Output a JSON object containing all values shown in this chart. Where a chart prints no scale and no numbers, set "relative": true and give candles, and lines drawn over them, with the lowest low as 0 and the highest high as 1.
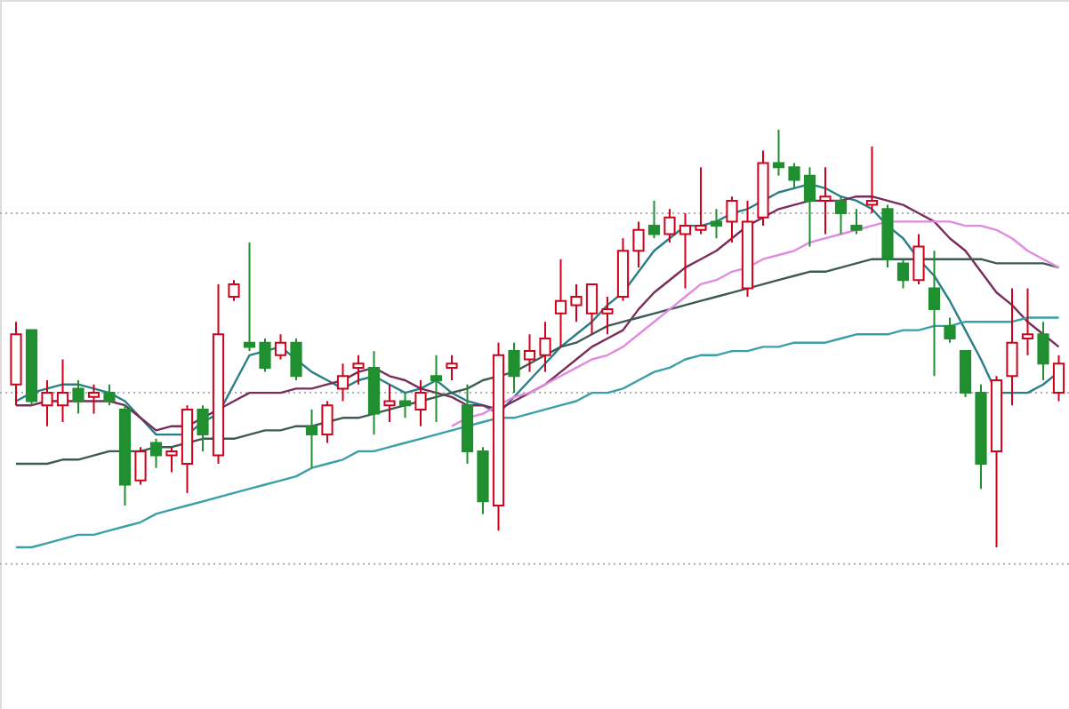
{
  "chart_data": {
    "type": "candlestick",
    "relative": true,
    "categories": [
      null,
      null,
      null,
      null,
      null,
      null,
      null,
      null,
      null,
      null,
      null,
      null,
      null,
      null,
      null,
      null,
      null,
      null,
      null,
      null,
      null,
      null,
      null,
      null,
      null,
      null,
      null,
      null,
      null,
      null,
      null,
      null,
      null,
      null,
      null,
      null,
      null,
      null,
      null,
      null,
      null,
      null,
      null,
      null,
      null,
      null,
      null,
      null,
      null,
      null,
      null,
      null,
      null,
      null,
      null,
      null,
      null,
      null,
      null,
      null,
      null,
      null,
      null,
      null,
      null,
      null,
      null,
      null
    ],
    "ohlc": [
      [
        0.39,
        0.54,
        0.34,
        0.51
      ],
      [
        0.52,
        0.52,
        0.34,
        0.35
      ],
      [
        0.34,
        0.4,
        0.29,
        0.37
      ],
      [
        0.34,
        0.45,
        0.3,
        0.37
      ],
      [
        0.38,
        0.4,
        0.32,
        0.35
      ],
      [
        0.36,
        0.39,
        0.32,
        0.37
      ],
      [
        0.37,
        0.39,
        0.34,
        0.35
      ],
      [
        0.33,
        0.34,
        0.1,
        0.15
      ],
      [
        0.16,
        0.24,
        0.15,
        0.23
      ],
      [
        0.25,
        0.26,
        0.19,
        0.22
      ],
      [
        0.22,
        0.24,
        0.18,
        0.23
      ],
      [
        0.2,
        0.34,
        0.13,
        0.33
      ],
      [
        0.33,
        0.34,
        0.23,
        0.27
      ],
      [
        0.22,
        0.63,
        0.2,
        0.51
      ],
      [
        0.6,
        0.64,
        0.59,
        0.63
      ],
      [
        0.49,
        0.73,
        0.47,
        0.48
      ],
      [
        0.49,
        0.5,
        0.42,
        0.43
      ],
      [
        0.46,
        0.51,
        0.45,
        0.49
      ],
      [
        0.49,
        0.5,
        0.4,
        0.41
      ],
      [
        0.29,
        0.33,
        0.19,
        0.27
      ],
      [
        0.27,
        0.35,
        0.25,
        0.34
      ],
      [
        0.38,
        0.44,
        0.35,
        0.41
      ],
      [
        0.43,
        0.46,
        0.39,
        0.44
      ],
      [
        0.43,
        0.47,
        0.27,
        0.32
      ],
      [
        0.34,
        0.39,
        0.3,
        0.35
      ],
      [
        0.35,
        0.37,
        0.31,
        0.34
      ],
      [
        0.33,
        0.4,
        0.29,
        0.37
      ],
      [
        0.41,
        0.46,
        0.3,
        0.4
      ],
      [
        0.43,
        0.46,
        0.4,
        0.44
      ],
      [
        0.34,
        0.39,
        0.2,
        0.23
      ],
      [
        0.23,
        0.24,
        0.08,
        0.11
      ],
      [
        0.1,
        0.49,
        0.04,
        0.46
      ],
      [
        0.47,
        0.49,
        0.37,
        0.41
      ],
      [
        0.45,
        0.51,
        0.42,
        0.47
      ],
      [
        0.46,
        0.54,
        0.42,
        0.5
      ],
      [
        0.56,
        0.69,
        0.48,
        0.59
      ],
      [
        0.58,
        0.63,
        0.54,
        0.6
      ],
      [
        0.56,
        0.63,
        0.51,
        0.63
      ],
      [
        0.56,
        0.6,
        0.51,
        0.57
      ],
      [
        0.6,
        0.74,
        0.59,
        0.71
      ],
      [
        0.71,
        0.78,
        0.67,
        0.76
      ],
      [
        0.77,
        0.83,
        0.74,
        0.75
      ],
      [
        0.75,
        0.81,
        0.73,
        0.79
      ],
      [
        0.75,
        0.8,
        0.62,
        0.77
      ],
      [
        0.76,
        0.91,
        0.75,
        0.77
      ],
      [
        0.78,
        0.81,
        0.74,
        0.77
      ],
      [
        0.78,
        0.84,
        0.73,
        0.83
      ],
      [
        0.62,
        0.83,
        0.6,
        0.78
      ],
      [
        0.79,
        0.95,
        0.77,
        0.92
      ],
      [
        0.92,
        1.0,
        0.89,
        0.91
      ],
      [
        0.91,
        0.92,
        0.86,
        0.88
      ],
      [
        0.89,
        0.91,
        0.72,
        0.83
      ],
      [
        0.83,
        0.91,
        0.75,
        0.84
      ],
      [
        0.83,
        0.84,
        0.75,
        0.8
      ],
      [
        0.77,
        0.81,
        0.75,
        0.76
      ],
      [
        0.82,
        0.96,
        0.8,
        0.83
      ],
      [
        0.81,
        0.82,
        0.67,
        0.69
      ],
      [
        0.68,
        0.69,
        0.62,
        0.64
      ],
      [
        0.64,
        0.75,
        0.63,
        0.72
      ],
      [
        0.62,
        0.71,
        0.41,
        0.57
      ],
      [
        0.53,
        0.55,
        0.49,
        0.5
      ],
      [
        0.47,
        0.47,
        0.36,
        0.37
      ],
      [
        0.37,
        0.39,
        0.14,
        0.2
      ],
      [
        0.23,
        0.41,
        0.0,
        0.4
      ],
      [
        0.41,
        0.62,
        0.34,
        0.49
      ],
      [
        0.5,
        0.62,
        0.46,
        0.51
      ],
      [
        0.51,
        0.54,
        0.4,
        0.44
      ],
      [
        0.37,
        0.46,
        0.35,
        0.44
      ]
    ],
    "colors": [
      "#d0021b",
      "#1f8f2f",
      "#d0021b",
      "#d0021b",
      "#1f8f2f",
      "#d0021b",
      "#1f8f2f",
      "#1f8f2f",
      "#d0021b",
      "#1f8f2f",
      "#d0021b",
      "#d0021b",
      "#1f8f2f",
      "#d0021b",
      "#d0021b",
      "#1f8f2f",
      "#1f8f2f",
      "#d0021b",
      "#1f8f2f",
      "#1f8f2f",
      "#d0021b",
      "#d0021b",
      "#d0021b",
      "#1f8f2f",
      "#d0021b",
      "#1f8f2f",
      "#d0021b",
      "#1f8f2f",
      "#d0021b",
      "#1f8f2f",
      "#1f8f2f",
      "#d0021b",
      "#1f8f2f",
      "#d0021b",
      "#d0021b",
      "#d0021b",
      "#d0021b",
      "#d0021b",
      "#d0021b",
      "#d0021b",
      "#d0021b",
      "#1f8f2f",
      "#d0021b",
      "#d0021b",
      "#d0021b",
      "#1f8f2f",
      "#d0021b",
      "#d0021b",
      "#d0021b",
      "#1f8f2f",
      "#1f8f2f",
      "#1f8f2f",
      "#d0021b",
      "#1f8f2f",
      "#1f8f2f",
      "#d0021b",
      "#1f8f2f",
      "#1f8f2f",
      "#d0021b",
      "#1f8f2f",
      "#1f8f2f",
      "#1f8f2f",
      "#1f8f2f",
      "#d0021b",
      "#d0021b",
      "#d0021b",
      "#1f8f2f",
      "#d0021b"
    ],
    "series": [
      {
        "type": "line",
        "color": "#2a7f86",
        "values": [
          0.35,
          0.37,
          0.38,
          0.39,
          0.39,
          0.38,
          0.37,
          0.35,
          0.31,
          0.27,
          0.27,
          0.27,
          0.3,
          0.32,
          0.39,
          0.46,
          0.47,
          0.48,
          0.45,
          0.42,
          0.4,
          0.38,
          0.4,
          0.41,
          0.39,
          0.37,
          0.38,
          0.4,
          0.37,
          0.35,
          0.34,
          0.32,
          0.36,
          0.4,
          0.44,
          0.48,
          0.51,
          0.54,
          0.58,
          0.61,
          0.66,
          0.71,
          0.74,
          0.77,
          0.77,
          0.78,
          0.8,
          0.81,
          0.83,
          0.85,
          0.86,
          0.87,
          0.86,
          0.84,
          0.83,
          0.81,
          0.77,
          0.74,
          0.69,
          0.65,
          0.59,
          0.52,
          0.45,
          0.37,
          0.37,
          0.37,
          0.39,
          0.42
        ]
      },
      {
        "type": "line",
        "color": "#7a2d5a",
        "values": [
          0.34,
          0.34,
          0.35,
          0.35,
          0.35,
          0.35,
          0.35,
          0.34,
          0.31,
          0.28,
          0.29,
          0.29,
          0.31,
          0.33,
          0.35,
          0.37,
          0.37,
          0.37,
          0.38,
          0.38,
          0.39,
          0.4,
          0.42,
          0.43,
          0.41,
          0.4,
          0.38,
          0.37,
          0.36,
          0.34,
          0.34,
          0.33,
          0.35,
          0.37,
          0.39,
          0.42,
          0.45,
          0.48,
          0.5,
          0.52,
          0.57,
          0.61,
          0.64,
          0.67,
          0.69,
          0.71,
          0.74,
          0.77,
          0.79,
          0.81,
          0.82,
          0.83,
          0.83,
          0.83,
          0.84,
          0.84,
          0.83,
          0.82,
          0.8,
          0.78,
          0.74,
          0.71,
          0.66,
          0.61,
          0.58,
          0.54,
          0.51,
          0.48
        ]
      },
      {
        "type": "line",
        "color": "#3d5a55",
        "values": [
          0.2,
          0.2,
          0.2,
          0.21,
          0.21,
          0.22,
          0.23,
          0.23,
          0.23,
          0.24,
          0.24,
          0.25,
          0.26,
          0.26,
          0.26,
          0.27,
          0.28,
          0.28,
          0.29,
          0.29,
          0.3,
          0.31,
          0.31,
          0.32,
          0.33,
          0.34,
          0.35,
          0.36,
          0.37,
          0.38,
          0.4,
          0.41,
          0.42,
          0.44,
          0.46,
          0.48,
          0.49,
          0.51,
          0.53,
          0.54,
          0.55,
          0.56,
          0.57,
          0.58,
          0.59,
          0.6,
          0.61,
          0.62,
          0.63,
          0.64,
          0.65,
          0.66,
          0.66,
          0.67,
          0.68,
          0.69,
          0.69,
          0.69,
          0.69,
          0.69,
          0.69,
          0.69,
          0.69,
          0.68,
          0.68,
          0.68,
          0.68,
          0.67
        ]
      },
      {
        "type": "line",
        "color": "#3aa0a8",
        "values": [
          0.0,
          0.0,
          0.01,
          0.02,
          0.03,
          0.03,
          0.04,
          0.05,
          0.06,
          0.08,
          0.09,
          0.1,
          0.11,
          0.12,
          0.13,
          0.14,
          0.15,
          0.16,
          0.17,
          0.19,
          0.2,
          0.21,
          0.23,
          0.23,
          0.24,
          0.25,
          0.26,
          0.27,
          0.28,
          0.29,
          0.3,
          0.31,
          0.31,
          0.32,
          0.33,
          0.34,
          0.35,
          0.37,
          0.37,
          0.38,
          0.4,
          0.42,
          0.43,
          0.45,
          0.46,
          0.46,
          0.47,
          0.47,
          0.48,
          0.48,
          0.49,
          0.49,
          0.49,
          0.5,
          0.51,
          0.51,
          0.51,
          0.52,
          0.52,
          0.53,
          0.53,
          0.54,
          0.54,
          0.54,
          0.54,
          0.55,
          0.55,
          0.55
        ]
      },
      {
        "type": "line",
        "color": "#e08ae0",
        "values": [
          null,
          null,
          null,
          null,
          null,
          null,
          null,
          null,
          null,
          null,
          null,
          null,
          null,
          null,
          null,
          null,
          null,
          null,
          null,
          null,
          null,
          null,
          null,
          null,
          null,
          null,
          null,
          null,
          0.29,
          0.31,
          0.32,
          0.34,
          0.36,
          0.37,
          0.39,
          0.41,
          0.43,
          0.45,
          0.46,
          0.48,
          0.51,
          0.54,
          0.57,
          0.6,
          0.63,
          0.64,
          0.66,
          0.67,
          0.69,
          0.7,
          0.71,
          0.73,
          0.74,
          0.75,
          0.76,
          0.77,
          0.78,
          0.78,
          0.78,
          0.78,
          0.78,
          0.77,
          0.77,
          0.76,
          0.74,
          0.71,
          0.69,
          0.67
        ]
      }
    ],
    "ref_lines": [
      {
        "axis": "y",
        "value": 0.8,
        "line_style": "dotted",
        "color": "#b0b0b0"
      },
      {
        "axis": "y",
        "value": 0.37,
        "line_style": "dotted",
        "color": "#b0b0b0"
      },
      {
        "axis": "y",
        "value": -0.04,
        "line_style": "dotted",
        "color": "#b0b0b0"
      }
    ]
  }
}
